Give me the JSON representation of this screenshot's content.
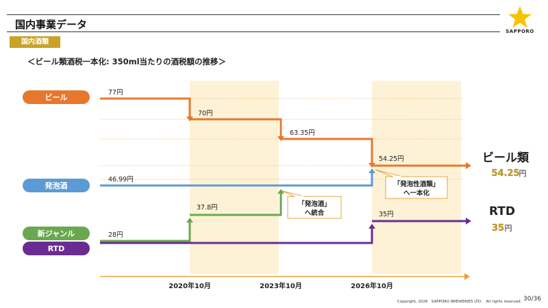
{
  "header": {
    "title": "国内事業データ",
    "section_tag": "国内酒類",
    "subtitle": "＜ビール類酒税一本化: 350ml当たりの酒税額の推移＞"
  },
  "logo": {
    "text": "SAPPORO",
    "star_color": "#f5c400"
  },
  "footer": {
    "copyright": "Copyright, 2026　SAPPORO BREWERIES LTD.　All rights reserved.",
    "page": "30/36"
  },
  "colors": {
    "beer": "#e8772e",
    "happoshu": "#5b9bd5",
    "shin_genre": "#6aa84f",
    "rtd": "#6a2c91",
    "band": "#fdf2d6",
    "axis": "#e8a33c",
    "result_value": "#c9a227"
  },
  "chart_data": {
    "type": "line",
    "step": true,
    "x_ticks": [
      "2020年10月",
      "2023年10月",
      "2026年10月"
    ],
    "series": [
      {
        "name": "ビール",
        "color": "#e8772e",
        "values": [
          77,
          70,
          63.35,
          54.25
        ],
        "labels": [
          "77円",
          "70円",
          "63.35円",
          "54.25円"
        ],
        "end_label": "ビール類",
        "end_value": "54.25",
        "end_unit": "円"
      },
      {
        "name": "発泡酒",
        "color": "#5b9bd5",
        "values": [
          46.99,
          46.99,
          46.99,
          54.25
        ],
        "labels": [
          "46.99円"
        ]
      },
      {
        "name": "新ジャンル",
        "color": "#6aa84f",
        "values": [
          28,
          37.8,
          46.99,
          54.25
        ],
        "labels": [
          "28円",
          "37.8円"
        ]
      },
      {
        "name": "RTD",
        "color": "#6a2c91",
        "values": [
          28,
          28,
          28,
          35
        ],
        "labels": [
          "35円"
        ],
        "end_label": "RTD",
        "end_value": "35",
        "end_unit": "円"
      }
    ],
    "annotations": [
      {
        "text": [
          "「発泡酒」",
          "へ統合"
        ]
      },
      {
        "text": [
          "「発泡性酒類」",
          "へ一本化"
        ]
      }
    ]
  }
}
